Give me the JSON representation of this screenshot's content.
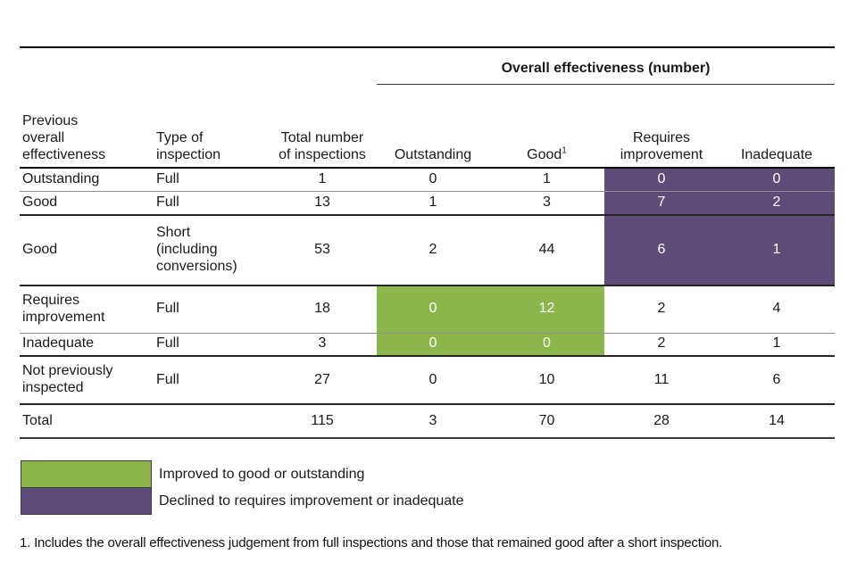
{
  "title": "Overall effectiveness (number)",
  "colors": {
    "improved": "#8cb54b",
    "declined": "#5e4b77"
  },
  "table": {
    "col_headers": {
      "prev": "Previous overall effectiveness",
      "type": "Type of inspection",
      "total": "Total number of inspections",
      "outstanding": "Outstanding",
      "good": "Good",
      "good_sup": "1",
      "requires": "Requires improvement",
      "inadequate": "Inadequate"
    },
    "rows": [
      {
        "sep": "light",
        "cells": [
          {
            "t": "Outstanding"
          },
          {
            "t": "Full"
          },
          {
            "t": "1",
            "n": true
          },
          {
            "t": "0",
            "n": true
          },
          {
            "t": "1",
            "n": true
          },
          {
            "t": "0",
            "n": true,
            "hl": "declined"
          },
          {
            "t": "0",
            "n": true,
            "hl": "declined"
          }
        ]
      },
      {
        "sep": "dark",
        "cells": [
          {
            "t": "Good"
          },
          {
            "t": "Full"
          },
          {
            "t": "13",
            "n": true
          },
          {
            "t": "1",
            "n": true
          },
          {
            "t": "3",
            "n": true
          },
          {
            "t": "7",
            "n": true,
            "hl": "declined"
          },
          {
            "t": "2",
            "n": true,
            "hl": "declined"
          }
        ]
      },
      {
        "sep": "dark",
        "cells": [
          {
            "t": "Good"
          },
          {
            "t": "Short (including conversions)"
          },
          {
            "t": "53",
            "n": true
          },
          {
            "t": "2",
            "n": true
          },
          {
            "t": "44",
            "n": true
          },
          {
            "t": "6",
            "n": true,
            "hl": "declined"
          },
          {
            "t": "1",
            "n": true,
            "hl": "declined"
          }
        ]
      },
      {
        "sep": "light",
        "cells": [
          {
            "t": "Requires improvement"
          },
          {
            "t": "Full"
          },
          {
            "t": "18",
            "n": true
          },
          {
            "t": "0",
            "n": true,
            "hl": "improved"
          },
          {
            "t": "12",
            "n": true,
            "hl": "improved"
          },
          {
            "t": "2",
            "n": true
          },
          {
            "t": "4",
            "n": true
          }
        ]
      },
      {
        "sep": "dark",
        "cells": [
          {
            "t": "Inadequate"
          },
          {
            "t": "Full"
          },
          {
            "t": "3",
            "n": true
          },
          {
            "t": "0",
            "n": true,
            "hl": "improved"
          },
          {
            "t": "0",
            "n": true,
            "hl": "improved"
          },
          {
            "t": "2",
            "n": true
          },
          {
            "t": "1",
            "n": true
          }
        ]
      },
      {
        "sep": "dark",
        "cells": [
          {
            "t": "Not previously inspected"
          },
          {
            "t": "Full"
          },
          {
            "t": "27",
            "n": true
          },
          {
            "t": "0",
            "n": true
          },
          {
            "t": "10",
            "n": true
          },
          {
            "t": "11",
            "n": true
          },
          {
            "t": "6",
            "n": true
          }
        ]
      },
      {
        "total": true,
        "cells": [
          {
            "t": "Total"
          },
          {
            "t": ""
          },
          {
            "t": "115",
            "n": true
          },
          {
            "t": "3",
            "n": true
          },
          {
            "t": "70",
            "n": true
          },
          {
            "t": "28",
            "n": true
          },
          {
            "t": "14",
            "n": true
          }
        ]
      }
    ]
  },
  "legend_items": [
    {
      "key": "improved",
      "label": "Improved to good or outstanding"
    },
    {
      "key": "declined",
      "label": "Declined to requires improvement or inadequate"
    }
  ],
  "footnote": "1. Includes the overall effectiveness judgement from full inspections and those that remained good after a short inspection."
}
